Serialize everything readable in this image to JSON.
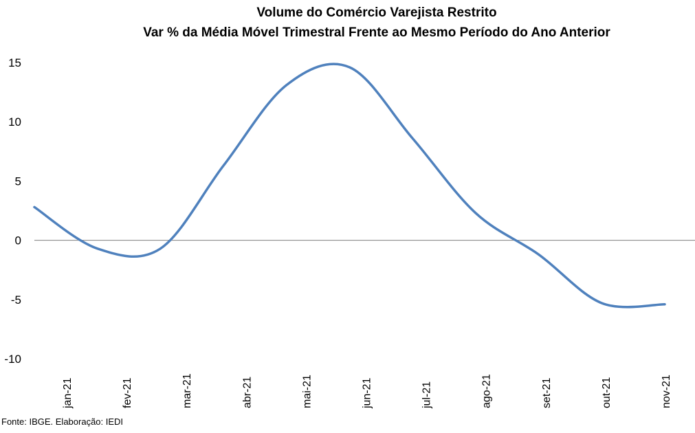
{
  "chart_data": {
    "type": "line",
    "title": "Volume do Comércio Varejista Restrito",
    "subtitle": "Var % da Média Móvel Trimestral Frente ao Mesmo Período do Ano Anterior",
    "xlabel": "",
    "ylabel": "",
    "categories": [
      "jan-21",
      "fev-21",
      "mar-21",
      "abr-21",
      "mai-21",
      "jun-21",
      "jul-21",
      "ago-21",
      "set-21",
      "out-21",
      "nov-21"
    ],
    "y_ticks": [
      "15",
      "10",
      "5",
      "0",
      "-5",
      "-10"
    ],
    "ylim": [
      -10,
      15
    ],
    "grid": false,
    "legend": "none",
    "series": [
      {
        "values": [
          2.8,
          -0.7,
          -0.7,
          6.3,
          13.1,
          14.6,
          8.6,
          2.3,
          -1.2,
          -5.3,
          -5.4
        ],
        "color": "#4F81BD"
      }
    ],
    "line_color": "#4F81BD",
    "zero_line_color": "#7f7f7f"
  },
  "source": "Fonte: IBGE. Elaboração: IEDI"
}
